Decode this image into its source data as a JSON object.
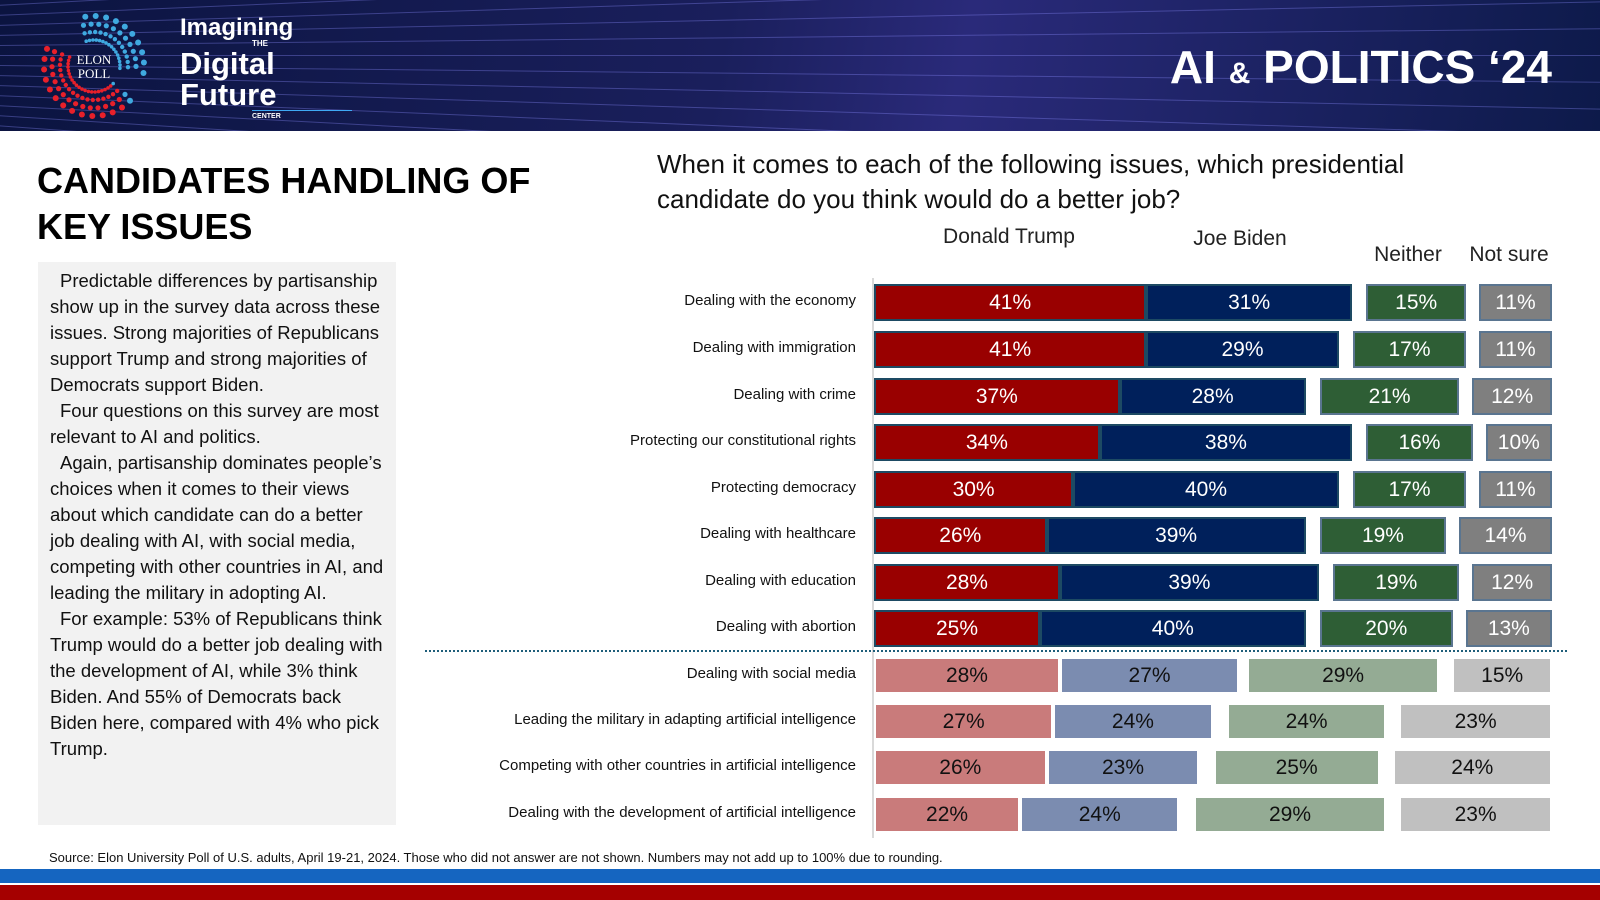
{
  "header": {
    "brand_line1": "Imagining",
    "brand_the": "THE",
    "brand_line2": "Digital",
    "brand_line3": "Future",
    "brand_center": "CENTER",
    "logo_text_1": "ELON",
    "logo_text_2": "POLL",
    "title_part1": "AI",
    "title_amp": "&",
    "title_part2": "POLITICS ‘24"
  },
  "slide_title": "CANDIDATES HANDLING OF KEY ISSUES",
  "textbox": {
    "paragraphs": [
      "Predictable differences by partisanship show up in the survey data across these issues. Strong majorities of Republicans support Trump and strong majorities of Democrats support Biden.",
      "Four questions on this survey are most relevant to AI and politics.",
      " Again, partisanship dominates people’s choices when it comes to their views about which candidate can do a better job dealing with AI, with social media, competing with other countries in AI, and leading the military in adopting AI.",
      " For example: 53% of Republicans think Trump would do a better job dealing with the development of AI, while 3% think Biden. And 55% of Democrats back Biden here, compared with 4% who pick Trump."
    ]
  },
  "source": "Source: Elon University Poll of U.S. adults, April 19-21, 2024. Those who did not answer are not shown. Numbers may not add up to 100% due to rounding.",
  "chart_data": {
    "type": "bar",
    "title": "When it comes to each of the following issues, which presidential candidate do you think would do a better job?",
    "series": [
      {
        "name": "Donald Trump",
        "color": "#990000",
        "light_color": "#c97b7b",
        "values": [
          41,
          41,
          37,
          34,
          30,
          26,
          28,
          25,
          28,
          27,
          26,
          22
        ]
      },
      {
        "name": "Joe Biden",
        "color": "#00205b",
        "light_color": "#7b8cb0",
        "values": [
          31,
          29,
          28,
          38,
          40,
          39,
          39,
          40,
          27,
          24,
          23,
          24
        ]
      },
      {
        "name": "Neither",
        "color": "#2e5e35",
        "light_color": "#94ab94",
        "values": [
          15,
          17,
          21,
          16,
          17,
          19,
          19,
          20,
          29,
          24,
          25,
          29
        ]
      },
      {
        "name": "Not sure",
        "color": "#7f7f7f",
        "light_color": "#c0c0c0",
        "values": [
          11,
          11,
          12,
          10,
          11,
          14,
          12,
          13,
          15,
          23,
          24,
          23
        ]
      }
    ],
    "categories": [
      "Dealing with the economy",
      "Dealing with immigration",
      "Dealing with crime",
      "Protecting our constitutional rights",
      "Protecting democracy",
      "Dealing with healthcare",
      "Dealing with education",
      "Dealing with abortion",
      "Dealing with social media",
      "Leading the military in adapting artificial intelligence",
      "Competing with other countries in artificial intelligence",
      "Dealing with the development of artificial intelligence"
    ],
    "highlighted_ai_rows_start": 8,
    "unit": "%"
  }
}
